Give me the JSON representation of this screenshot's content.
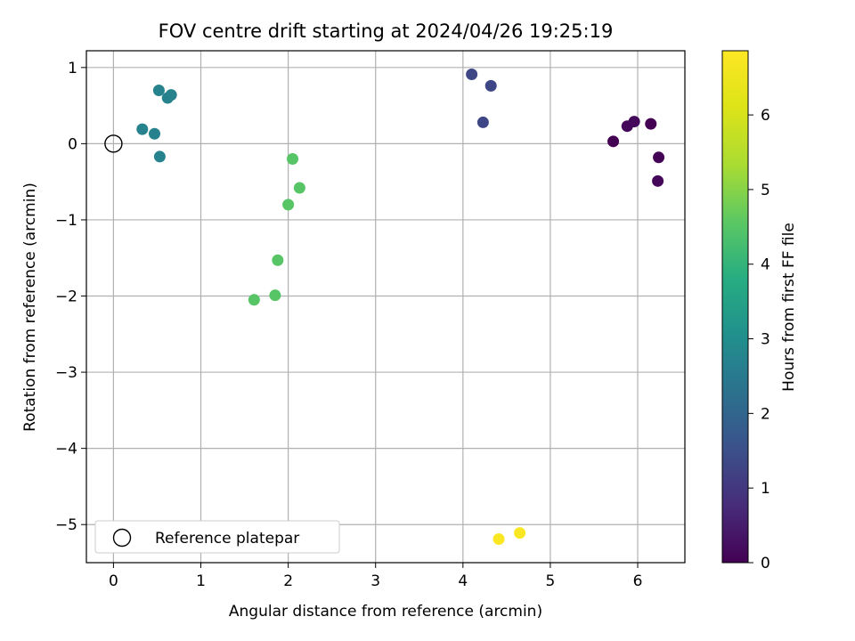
{
  "chart_data": {
    "type": "scatter",
    "title": "FOV centre drift starting at 2024/04/26 19:25:19",
    "xlabel": "Angular distance from reference (arcmin)",
    "ylabel": "Rotation from reference (arcmin)",
    "xlim": [
      -0.31,
      6.54
    ],
    "ylim": [
      -5.5,
      1.22
    ],
    "xticks": [
      0,
      1,
      2,
      3,
      4,
      5,
      6
    ],
    "yticks": [
      1,
      0,
      -1,
      -2,
      -3,
      -4,
      -5
    ],
    "grid": true,
    "colormap": "viridis",
    "colorbar": {
      "label": "Hours from first FF file",
      "range": [
        0,
        6.86
      ],
      "ticks": [
        0,
        1,
        2,
        3,
        4,
        5,
        6
      ]
    },
    "legend": {
      "placement": "lower-left",
      "label": "Reference platepar"
    },
    "reference_point": {
      "x": 0,
      "y": 0
    },
    "points": [
      {
        "x": 5.72,
        "y": 0.03,
        "hours": 0.0
      },
      {
        "x": 5.88,
        "y": 0.23,
        "hours": 0.1
      },
      {
        "x": 5.96,
        "y": 0.29,
        "hours": 0.15
      },
      {
        "x": 6.15,
        "y": 0.26,
        "hours": 0.0
      },
      {
        "x": 6.24,
        "y": -0.18,
        "hours": 0.05
      },
      {
        "x": 6.23,
        "y": -0.49,
        "hours": 0.1
      },
      {
        "x": 4.1,
        "y": 0.91,
        "hours": 1.3
      },
      {
        "x": 4.32,
        "y": 0.76,
        "hours": 1.3
      },
      {
        "x": 4.23,
        "y": 0.28,
        "hours": 1.3
      },
      {
        "x": 0.52,
        "y": 0.7,
        "hours": 2.7
      },
      {
        "x": 0.62,
        "y": 0.6,
        "hours": 2.7
      },
      {
        "x": 0.66,
        "y": 0.64,
        "hours": 2.7
      },
      {
        "x": 0.33,
        "y": 0.19,
        "hours": 2.7
      },
      {
        "x": 0.47,
        "y": 0.13,
        "hours": 2.7
      },
      {
        "x": 0.53,
        "y": -0.17,
        "hours": 2.7
      },
      {
        "x": 2.05,
        "y": -0.2,
        "hours": 4.5
      },
      {
        "x": 2.13,
        "y": -0.58,
        "hours": 4.5
      },
      {
        "x": 2.0,
        "y": -0.8,
        "hours": 4.5
      },
      {
        "x": 1.88,
        "y": -1.53,
        "hours": 4.5
      },
      {
        "x": 1.85,
        "y": -1.99,
        "hours": 4.5
      },
      {
        "x": 1.61,
        "y": -2.05,
        "hours": 4.5
      },
      {
        "x": 4.41,
        "y": -5.19,
        "hours": 6.8
      },
      {
        "x": 4.65,
        "y": -5.11,
        "hours": 6.8
      }
    ]
  }
}
